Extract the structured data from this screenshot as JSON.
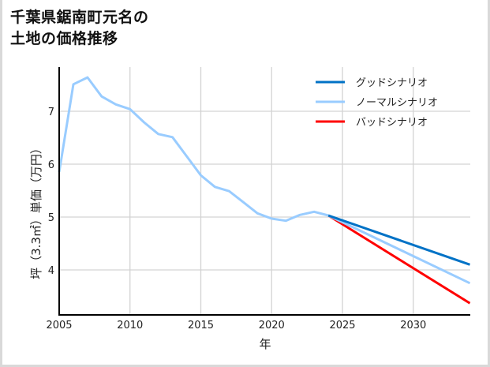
{
  "chart_data": {
    "type": "line",
    "title": "千葉県鋸南町元名の\n土地の価格推移",
    "title_lines": [
      "千葉県鋸南町元名の",
      "土地の価格推移"
    ],
    "xlabel": "年",
    "ylabel": "坪（3.3㎡）単価（万円）",
    "xlim": [
      2005,
      2034
    ],
    "ylim": [
      3.15,
      7.84
    ],
    "xticks": [
      2005,
      2010,
      2015,
      2020,
      2025,
      2030
    ],
    "yticks": [
      4,
      5,
      6,
      7
    ],
    "grid": true,
    "legend_position": "upper right",
    "historical": {
      "x": [
        2005,
        2006,
        2007,
        2008,
        2009,
        2010,
        2011,
        2012,
        2013,
        2014,
        2015,
        2016,
        2017,
        2018,
        2019,
        2020,
        2021,
        2022,
        2023,
        2024
      ],
      "values": [
        5.85,
        7.51,
        7.64,
        7.28,
        7.13,
        7.04,
        6.79,
        6.57,
        6.51,
        6.15,
        5.79,
        5.57,
        5.49,
        5.28,
        5.07,
        4.97,
        4.93,
        5.04,
        5.1,
        5.03
      ]
    },
    "series": [
      {
        "name": "グッドシナリオ",
        "color": "#0072c6",
        "x": [
          2024,
          2034
        ],
        "values": [
          5.03,
          4.1
        ]
      },
      {
        "name": "ノーマルシナリオ",
        "color": "#99ccff",
        "x": [
          2024,
          2034
        ],
        "values": [
          5.03,
          3.75
        ]
      },
      {
        "name": "バッドシナリオ",
        "color": "#ff0000",
        "x": [
          2024,
          2034
        ],
        "values": [
          5.03,
          3.37
        ]
      }
    ]
  },
  "colors": {
    "historical": "#99ccff",
    "grid": "#d3d3d3",
    "axis": "#000000"
  }
}
